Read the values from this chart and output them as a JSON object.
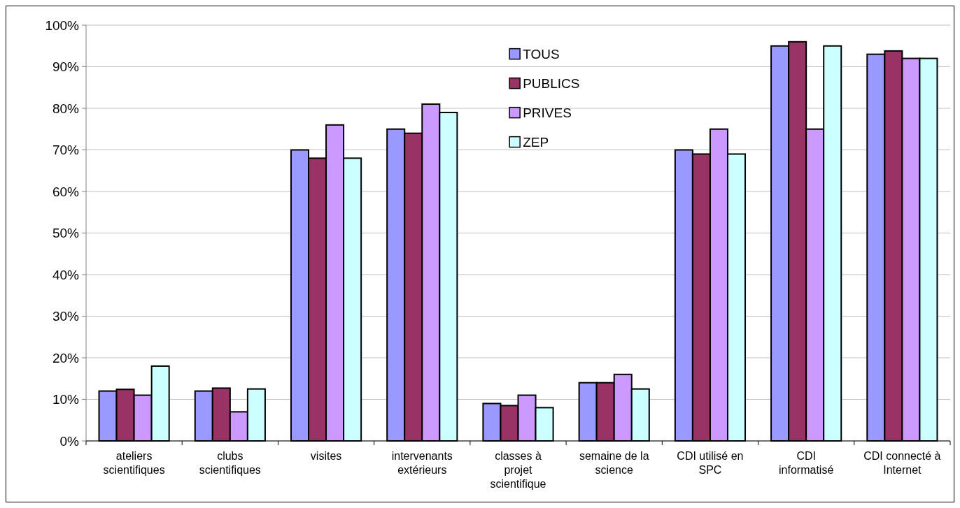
{
  "chart_data": {
    "type": "bar",
    "categories": [
      "ateliers scientifiques",
      "clubs scientifiques",
      "visites",
      "intervenants extérieurs",
      "classes à projet scientifique",
      "semaine de la science",
      "CDI utilisé en SPC",
      "CDI informatisé",
      "CDI connecté à Internet"
    ],
    "series": [
      {
        "name": "TOUS",
        "color": "#9999ff",
        "values": [
          12,
          12,
          70,
          75,
          9,
          14,
          70,
          95,
          93
        ]
      },
      {
        "name": "PUBLICS",
        "color": "#993366",
        "values": [
          12.4,
          12.7,
          68,
          74,
          8.5,
          14,
          69,
          96,
          93.8
        ]
      },
      {
        "name": "PRIVES",
        "color": "#cc99ff",
        "values": [
          11,
          7,
          76,
          81,
          11,
          16,
          75,
          75,
          92
        ]
      },
      {
        "name": "ZEP",
        "color": "#ccffff",
        "values": [
          18,
          12.5,
          68,
          79,
          8,
          12.5,
          69,
          95,
          92
        ]
      }
    ],
    "ylim": [
      0,
      100
    ],
    "yticks": [
      {
        "value": 0,
        "label": "0%"
      },
      {
        "value": 10,
        "label": "10%"
      },
      {
        "value": 20,
        "label": "20%"
      },
      {
        "value": 30,
        "label": "30%"
      },
      {
        "value": 40,
        "label": "40%"
      },
      {
        "value": 50,
        "label": "50%"
      },
      {
        "value": 60,
        "label": "60%"
      },
      {
        "value": 70,
        "label": "70%"
      },
      {
        "value": 80,
        "label": "80%"
      },
      {
        "value": 90,
        "label": "90%"
      },
      {
        "value": 100,
        "label": "100%"
      }
    ],
    "grid": "y",
    "legend": "top"
  }
}
